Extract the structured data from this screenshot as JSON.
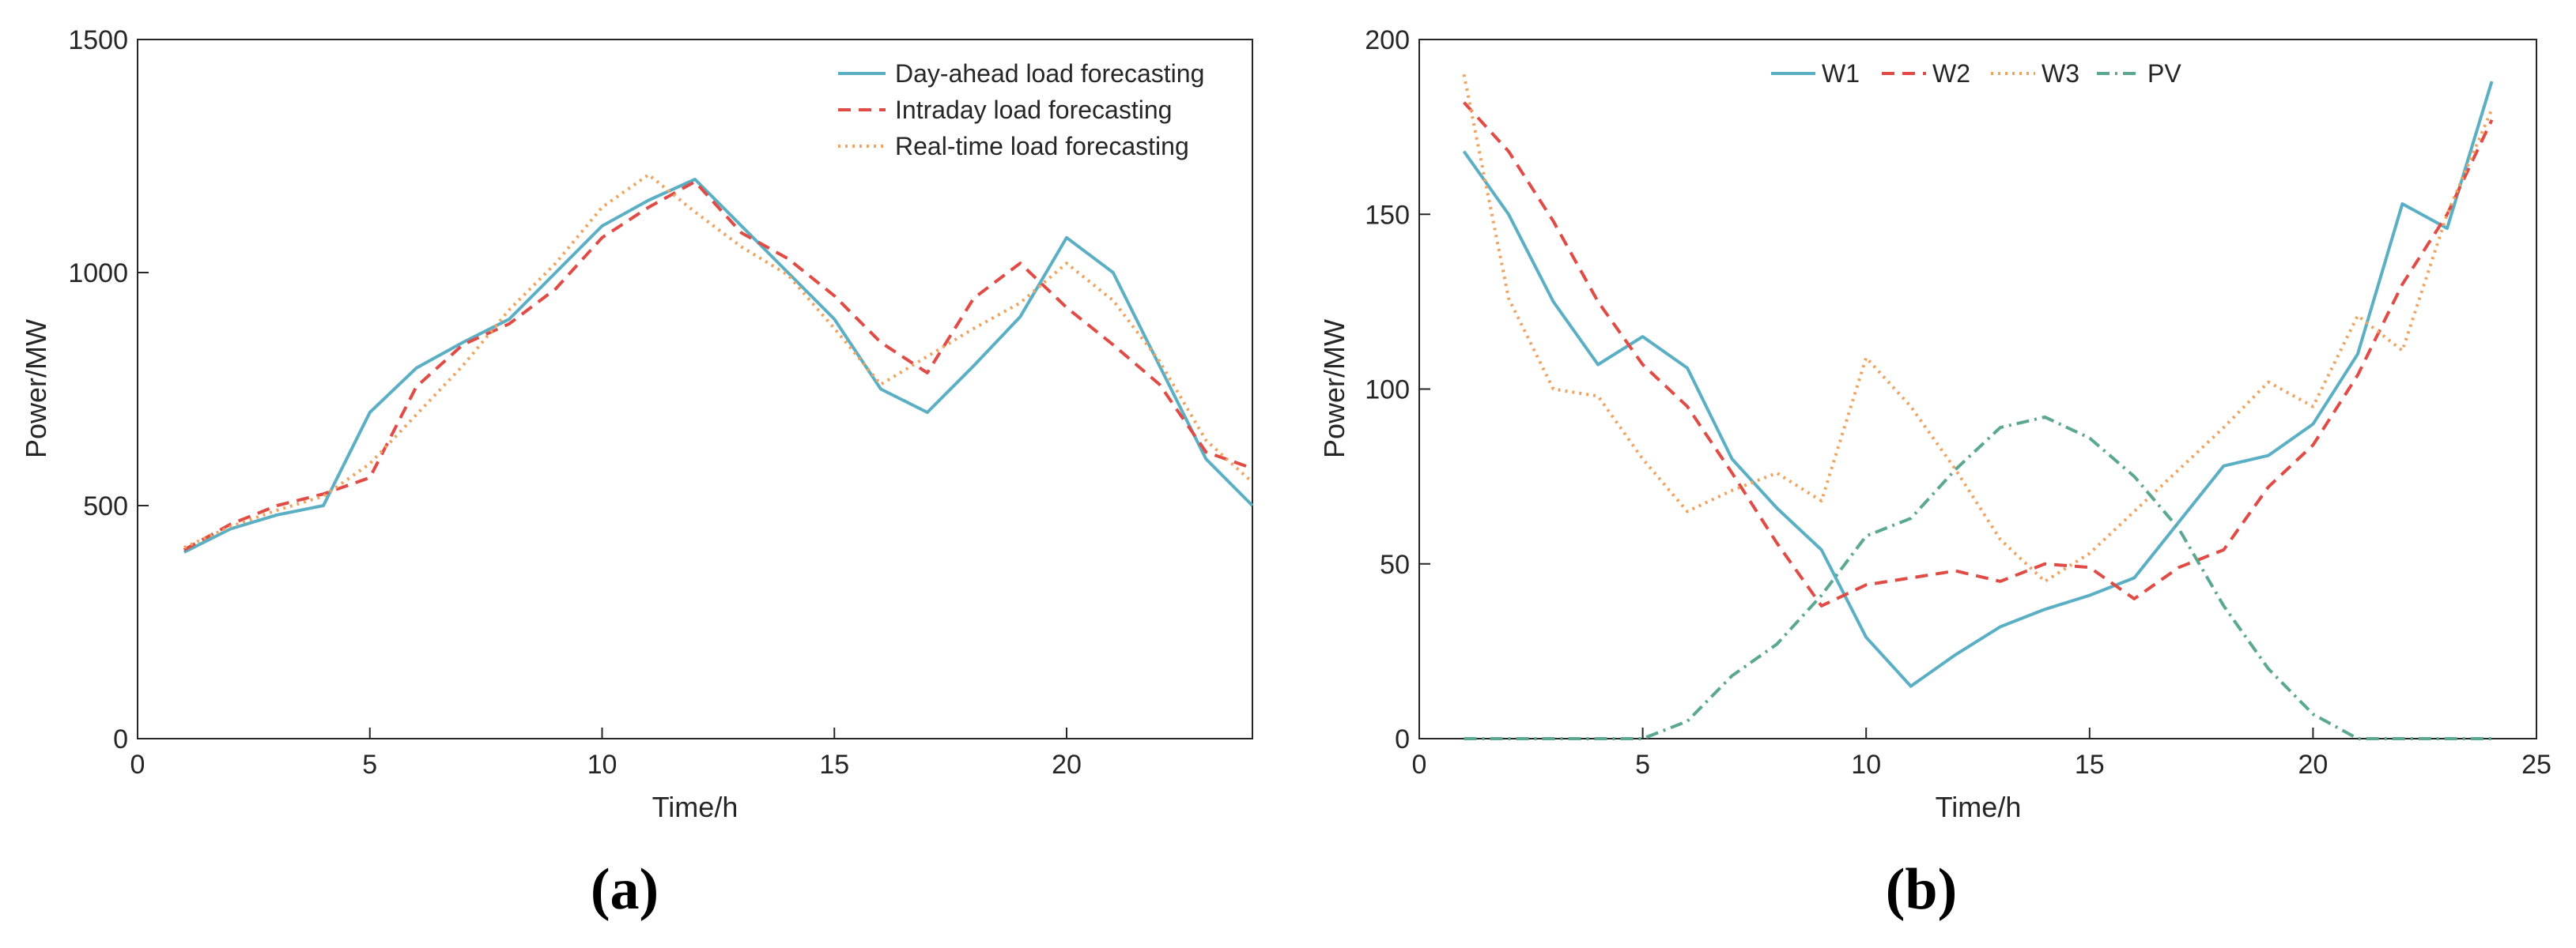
{
  "chart_data": [
    {
      "panel_label": "(a)",
      "type": "line",
      "xlabel": "Time/h",
      "ylabel": "Power/MW",
      "xlim": [
        0,
        24
      ],
      "ylim": [
        0,
        1500
      ],
      "xticks": [
        0,
        5,
        10,
        15,
        20
      ],
      "yticks": [
        0,
        500,
        1000,
        1500
      ],
      "legend_position": "top-right",
      "x": [
        1,
        2,
        3,
        4,
        5,
        6,
        7,
        8,
        9,
        10,
        11,
        12,
        13,
        14,
        15,
        16,
        17,
        18,
        19,
        20,
        21,
        22,
        23,
        24
      ],
      "series": [
        {
          "name": "Day-ahead load forecasting",
          "style": "solid",
          "color": "#5aafc4",
          "values": [
            400,
            450,
            480,
            500,
            700,
            795,
            850,
            900,
            1000,
            1100,
            1155,
            1200,
            1100,
            1000,
            900,
            750,
            700,
            800,
            905,
            1075,
            1000,
            800,
            600,
            500
          ]
        },
        {
          "name": "Intraday load forecasting",
          "style": "dashed",
          "color": "#e04c45",
          "values": [
            405,
            460,
            500,
            525,
            560,
            755,
            845,
            890,
            965,
            1075,
            1140,
            1195,
            1085,
            1030,
            950,
            850,
            785,
            945,
            1020,
            925,
            845,
            760,
            615,
            580
          ]
        },
        {
          "name": "Real-time load forecasting",
          "style": "dotted",
          "color": "#f0a35e",
          "values": [
            410,
            455,
            490,
            520,
            590,
            695,
            800,
            920,
            1020,
            1140,
            1210,
            1130,
            1055,
            995,
            880,
            760,
            820,
            880,
            935,
            1020,
            940,
            810,
            640,
            550
          ]
        }
      ]
    },
    {
      "panel_label": "(b)",
      "type": "line",
      "xlabel": "Time/h",
      "ylabel": "Power/MW",
      "xlim": [
        0,
        25
      ],
      "ylim": [
        0,
        200
      ],
      "xticks": [
        0,
        5,
        10,
        15,
        20,
        25
      ],
      "yticks": [
        0,
        50,
        100,
        150,
        200
      ],
      "legend_position": "top-center",
      "x": [
        1,
        2,
        3,
        4,
        5,
        6,
        7,
        8,
        9,
        10,
        11,
        12,
        13,
        14,
        15,
        16,
        17,
        18,
        19,
        20,
        21,
        22,
        23,
        24
      ],
      "series": [
        {
          "name": "W1",
          "style": "solid",
          "color": "#5aafc4",
          "values": [
            168,
            150,
            125,
            107,
            115,
            106,
            80,
            66,
            54,
            29,
            15,
            24,
            32,
            37,
            41,
            46,
            62,
            78,
            81,
            90,
            110,
            153,
            146,
            188
          ]
        },
        {
          "name": "W2",
          "style": "dashed",
          "color": "#e04c45",
          "values": [
            182,
            168,
            148,
            125,
            107,
            95,
            76,
            56,
            38,
            44,
            46,
            48,
            45,
            50,
            49,
            40,
            49,
            54,
            72,
            84,
            104,
            130,
            150,
            177
          ]
        },
        {
          "name": "W3",
          "style": "dotted",
          "color": "#f0a35e",
          "values": [
            190,
            126,
            100,
            98,
            80,
            65,
            71,
            76,
            68,
            109,
            95,
            77,
            57,
            45,
            53,
            65,
            77,
            89,
            102,
            95,
            121,
            111,
            150,
            180
          ]
        },
        {
          "name": "PV",
          "style": "dashdot",
          "color": "#5aa891",
          "values": [
            0,
            0,
            0,
            0,
            0,
            5,
            18,
            27,
            41,
            58,
            63,
            77,
            89,
            92,
            86,
            75,
            60,
            38,
            20,
            7,
            0,
            0,
            0,
            0
          ]
        }
      ]
    }
  ]
}
